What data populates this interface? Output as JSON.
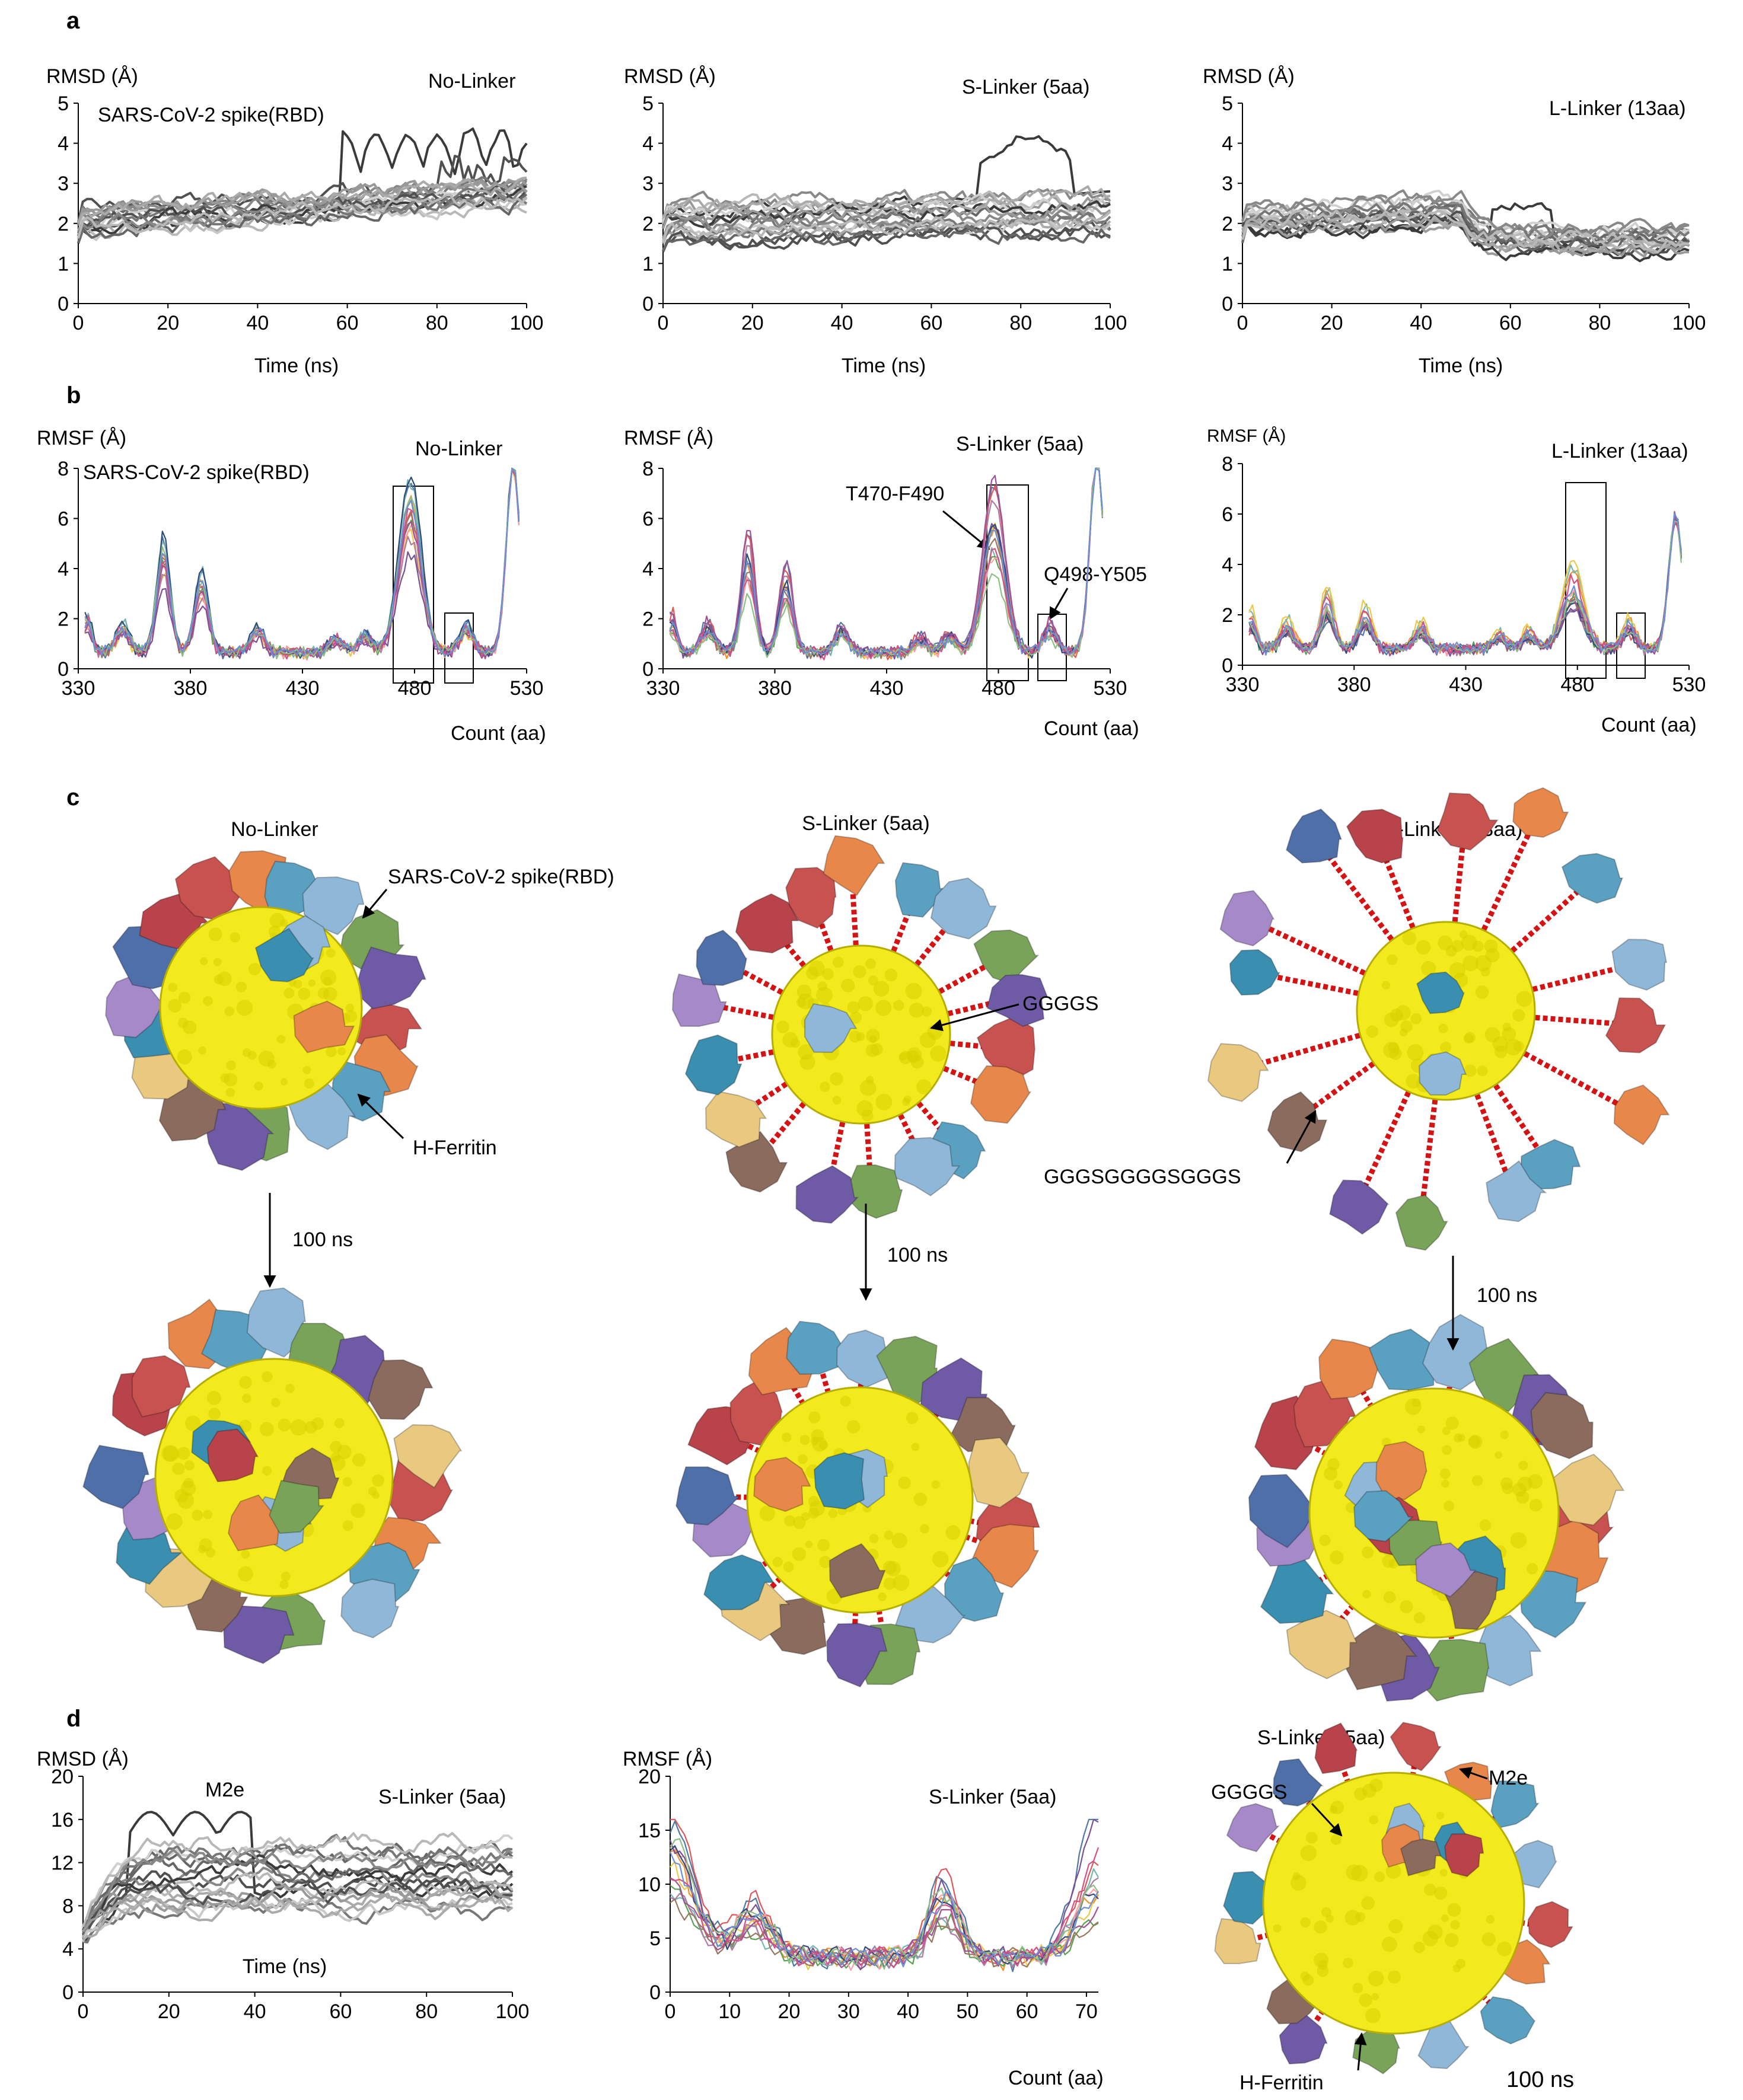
{
  "panels": {
    "a": {
      "letter": "a",
      "xlabel": "Time (ns)",
      "ylabel": "RMSD (Å)",
      "yticks": [
        "0",
        "1",
        "2",
        "3",
        "4",
        "5"
      ],
      "xticks": [
        "0",
        "20",
        "40",
        "60",
        "80",
        "100"
      ]
    },
    "b": {
      "letter": "b",
      "xlabel": "Count (aa)",
      "ylabel": "RMSF (Å)",
      "yticks": [
        "0",
        "2",
        "4",
        "6",
        "8"
      ],
      "xticks": [
        "330",
        "380",
        "430",
        "480",
        "530"
      ]
    },
    "c": {
      "letter": "c"
    },
    "d": {
      "letter": "d"
    }
  },
  "variants": {
    "no_linker": "No-Linker",
    "s_linker": "S-Linker (5aa)",
    "l_linker": "L-Linker (13aa)"
  },
  "annotations": {
    "rbd": "SARS-CoV-2 spike(RBD)",
    "t470": "T470-F490",
    "q498": "Q498-Y505",
    "ggggs": "GGGGS",
    "long_linker": "GGGSGGGGSGGGS",
    "ferritin": "H-Ferritin",
    "time_100ns": "100 ns",
    "m2e": "M2e"
  },
  "panel_d": {
    "rmsd_ylabel": "RMSD (Å)",
    "rmsd_xlabel": "Time (ns)",
    "rmsd_yticks": [
      "0",
      "4",
      "8",
      "12",
      "16",
      "20"
    ],
    "rmsd_xticks": [
      "0",
      "20",
      "40",
      "60",
      "80",
      "100"
    ],
    "rmsf_ylabel": "RMSF (Å)",
    "rmsf_xlabel": "Count (aa)",
    "rmsf_yticks": [
      "0",
      "5",
      "10",
      "15",
      "20"
    ],
    "rmsf_xticks": [
      "0",
      "10",
      "20",
      "30",
      "40",
      "50",
      "60",
      "70"
    ]
  },
  "chart_data": [
    {
      "type": "line",
      "title": "No-Linker",
      "subtitle": "SARS-CoV-2 spike(RBD)",
      "xlabel": "Time (ns)",
      "ylabel": "RMSD (Å)",
      "xlim": [
        0,
        100
      ],
      "ylim": [
        0,
        5
      ],
      "series_count": 20,
      "range_summary": "2-3 Å, one trajectory up to ~4.5 Å near 65-90 ns"
    },
    {
      "type": "line",
      "title": "S-Linker (5aa)",
      "xlabel": "Time (ns)",
      "ylabel": "RMSD (Å)",
      "xlim": [
        0,
        100
      ],
      "ylim": [
        0,
        5
      ],
      "series_count": 20,
      "range_summary": "1.3-2.8 Å, one trajectory peaks ~4.2 Å at 80 ns"
    },
    {
      "type": "line",
      "title": "L-Linker (13aa)",
      "xlabel": "Time (ns)",
      "ylabel": "RMSD (Å)",
      "xlim": [
        0,
        100
      ],
      "ylim": [
        0,
        5
      ],
      "series_count": 20,
      "range_summary": "~2.2 Å until 50 ns, drop to ~1.6 Å after 50 ns"
    },
    {
      "type": "line",
      "title": "No-Linker",
      "subtitle": "SARS-CoV-2 spike(RBD)",
      "xlabel": "Count (aa)",
      "ylabel": "RMSF (Å)",
      "xlim": [
        330,
        530
      ],
      "ylim": [
        0,
        8
      ],
      "peaks": {
        "368": 4.7,
        "385": 3.6,
        "478": 6.9,
        "521": 7.8
      }
    },
    {
      "type": "line",
      "title": "S-Linker (5aa)",
      "xlabel": "Count (aa)",
      "ylabel": "RMSF (Å)",
      "xlim": [
        330,
        530
      ],
      "ylim": [
        0,
        8
      ],
      "peaks": {
        "368": 4.1,
        "385": 3.8,
        "478": 6.1,
        "503": 1.7,
        "521": 8.0
      }
    },
    {
      "type": "line",
      "title": "L-Linker (13aa)",
      "xlabel": "Count (aa)",
      "ylabel": "RMSF (Å)",
      "xlim": [
        330,
        530
      ],
      "ylim": [
        0,
        8
      ],
      "peaks": {
        "368": 2.2,
        "385": 1.8,
        "478": 3.0,
        "521": 5.3
      }
    },
    {
      "type": "line",
      "title": "S-Linker (5aa)",
      "subtitle": "M2e",
      "xlabel": "Time (ns)",
      "ylabel": "RMSD (Å)",
      "xlim": [
        0,
        100
      ],
      "ylim": [
        0,
        20
      ],
      "series_count": 20,
      "range_summary": "6-15 Å, max ~17 Å near 20-35 ns"
    },
    {
      "type": "line",
      "title": "S-Linker (5aa)",
      "xlabel": "Count (aa)",
      "ylabel": "RMSF (Å)",
      "xlim": [
        0,
        72
      ],
      "ylim": [
        0,
        20
      ],
      "series_count": 20,
      "range_summary": "2-15 Å, peaks at termini and ~46 aa"
    }
  ]
}
